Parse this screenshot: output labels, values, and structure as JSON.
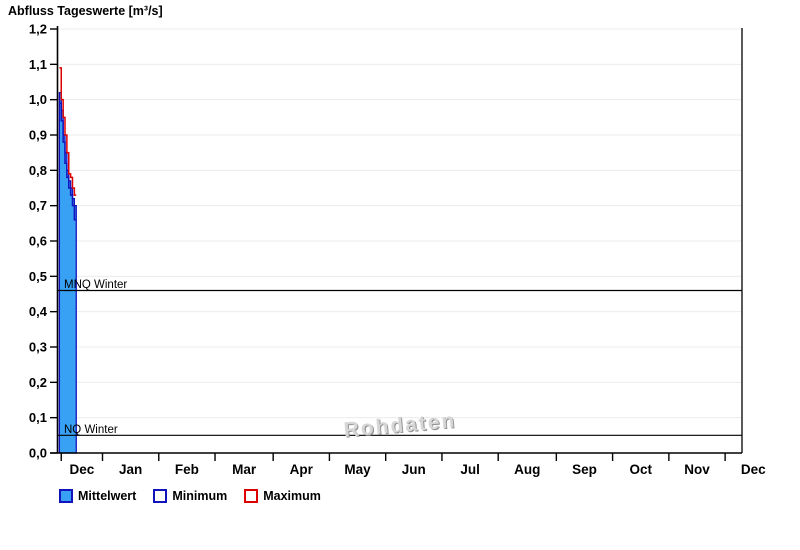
{
  "chart_data": {
    "type": "area",
    "title": "Abfluss Tageswerte [m³/s]",
    "watermark": "Rohdaten",
    "x_axis": {
      "month_labels": [
        "Dec",
        "Jan",
        "Feb",
        "Mar",
        "Apr",
        "May",
        "Jun",
        "Jul",
        "Aug",
        "Sep",
        "Oct",
        "Nov",
        "Dec"
      ],
      "tick_days": [
        2,
        24,
        54,
        84,
        115,
        145,
        175,
        205,
        235,
        266,
        296,
        326,
        356
      ],
      "total_days": 365
    },
    "y_axis": {
      "min": 0.0,
      "max": 1.2,
      "step": 0.1,
      "decimal_separator": ","
    },
    "grid": "horizontal",
    "days": [
      1,
      2,
      3,
      4,
      5,
      6,
      7,
      8,
      9
    ],
    "series": [
      {
        "name": "Mittelwert",
        "render": "area-step",
        "fill": "#38A1F4",
        "stroke": "#1313BE",
        "values": [
          1.02,
          0.97,
          0.9,
          0.85,
          0.8,
          0.77,
          0.75,
          0.72,
          0.7
        ]
      },
      {
        "name": "Minimum",
        "render": "step-line",
        "stroke": "#1313BE",
        "values": [
          0.99,
          0.94,
          0.88,
          0.82,
          0.78,
          0.75,
          0.73,
          0.7,
          0.66
        ]
      },
      {
        "name": "Maximum",
        "render": "step-line",
        "stroke": "#DD0000",
        "values": [
          1.09,
          1.0,
          0.95,
          0.9,
          0.85,
          0.79,
          0.78,
          0.75,
          0.73
        ]
      }
    ],
    "thresholds": [
      {
        "label": "MNQ Winter",
        "value": 0.46
      },
      {
        "label": "NQ Winter",
        "value": 0.05
      }
    ],
    "colors": {
      "axis": "#000000",
      "gridline": "#ececec",
      "text": "#000000"
    }
  },
  "legend": {
    "items": [
      {
        "label": "Mittelwert",
        "swatch_fill": "#38A1F4",
        "swatch_border": "#1313BE"
      },
      {
        "label": "Minimum",
        "swatch_fill": "#ffffff",
        "swatch_border": "#1313BE"
      },
      {
        "label": "Maximum",
        "swatch_fill": "#ffffff",
        "swatch_border": "#DD0000"
      }
    ]
  }
}
